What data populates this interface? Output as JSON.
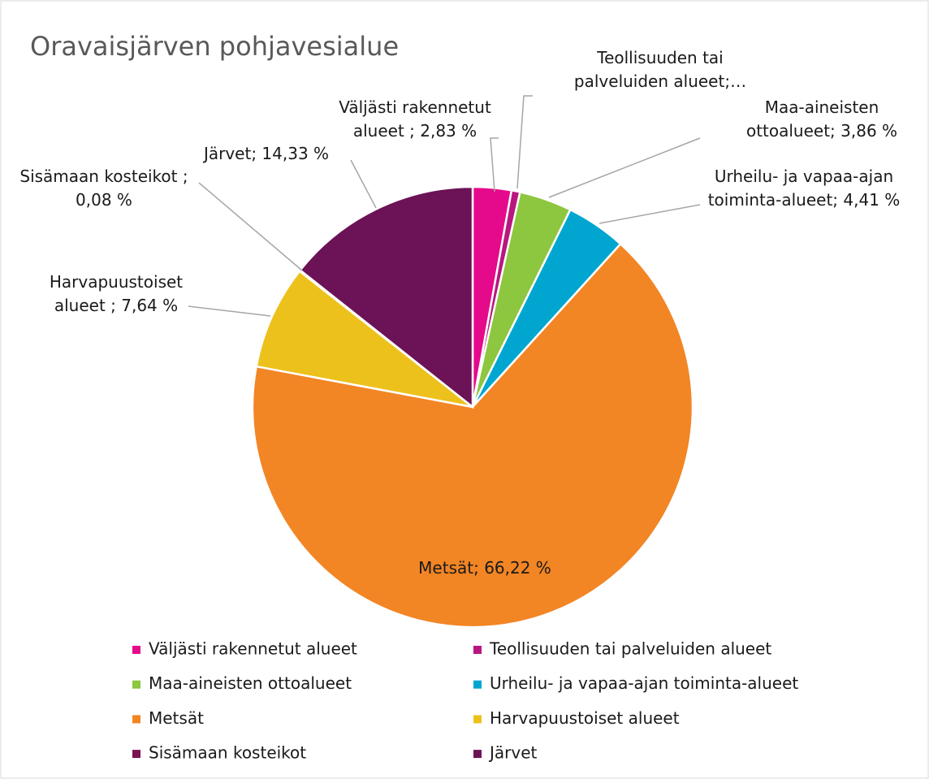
{
  "chart_data": {
    "type": "pie",
    "title": "Oravaisjärven pohjavesialue",
    "categories": [
      "Väljästi rakennetut alueet",
      "Teollisuuden tai palveluiden alueet",
      "Maa-aineisten ottoalueet",
      "Urheilu- ja vapaa-ajan toiminta-alueet",
      "Metsät",
      "Harvapuustoiset alueet",
      "Sisämaan kosteikot",
      "Järvet"
    ],
    "values": [
      2.83,
      0.63,
      3.86,
      4.41,
      66.22,
      7.64,
      0.08,
      14.33
    ],
    "value_labels": [
      "Väljästi rakennetut alueet ; 2,83 %",
      "Teollisuuden tai palveluiden alueet;…",
      "Maa-aineisten ottoalueet; 3,86 %",
      "Urheilu- ja vapaa-ajan toiminta-alueet; 4,41 %",
      "Metsät; 66,22 %",
      "Harvapuustoiset alueet ; 7,64 %",
      "Sisämaan kosteikot ; 0,08 %",
      "Järvet; 14,33 %"
    ],
    "colors": [
      "#e5098b",
      "#b8177f",
      "#8dc63f",
      "#00a6cf",
      "#f28524",
      "#edc11b",
      "#7a1250",
      "#6c1256"
    ],
    "legend": "bottom"
  }
}
